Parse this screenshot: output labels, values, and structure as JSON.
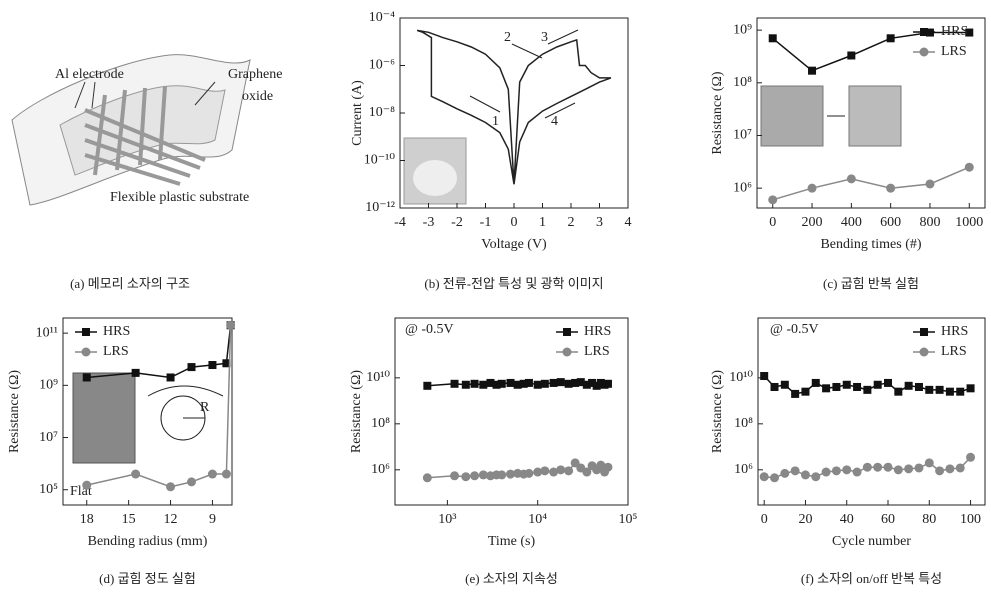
{
  "diagram": {
    "labels": [
      "Al electrode",
      "Graphene",
      "oxide",
      "Flexible plastic substrate"
    ],
    "caption": "(a) 메모리 소자의 구조"
  },
  "chart_data": [
    {
      "type": "line",
      "caption": "(b) 전류-전압 특성 및 광학 이미지",
      "xlabel": "Voltage (V)",
      "ylabel": "Current (A)",
      "yscale": "log",
      "xlim": [
        -4,
        4
      ],
      "xticks": [
        -4,
        -3,
        -2,
        -1,
        0,
        1,
        2,
        3,
        4
      ],
      "ylim": [
        1e-12,
        0.0001
      ],
      "yticks": [
        {
          "value": 1e-12,
          "label": "10⁻¹²"
        },
        {
          "value": 1e-10,
          "label": "10⁻¹⁰"
        },
        {
          "value": 1e-08,
          "label": "10⁻⁸"
        },
        {
          "value": 1e-06,
          "label": "10⁻⁶"
        },
        {
          "value": 0.0001,
          "label": "10⁻⁴"
        }
      ],
      "annotations": [
        "1",
        "2",
        "3",
        "4"
      ],
      "series": [
        {
          "color": "#222",
          "x": [
            0,
            -0.2,
            -0.5,
            -1,
            -1.5,
            -2,
            -2.5,
            -2.9,
            -2.9,
            -3.2,
            -3.4,
            -3,
            -2.5,
            -2,
            -1.5,
            -1,
            -0.5,
            -0.2,
            0,
            0.2,
            0.5,
            1,
            1.5,
            2,
            2.2,
            2.3,
            2.5,
            2.7,
            3,
            3.4,
            3,
            2.5,
            2,
            1.5,
            1,
            0.5,
            0.2,
            0
          ],
          "values": [
            1e-11,
            3e-10,
            1.5e-09,
            4e-09,
            8e-09,
            1.5e-08,
            3e-08,
            5e-08,
            1.5e-05,
            2.5e-05,
            3e-05,
            2.5e-05,
            1.5e-05,
            1e-05,
            6e-06,
            3e-06,
            8e-07,
            1e-07,
            1e-11,
            2e-07,
            1e-06,
            3e-06,
            6e-06,
            1e-05,
            1.2e-05,
            1e-06,
            1e-06,
            5e-07,
            3e-07,
            3e-07,
            2e-07,
            1e-07,
            5e-08,
            2.5e-08,
            1.2e-08,
            4e-09,
            6e-10,
            1e-11
          ]
        }
      ]
    },
    {
      "type": "line",
      "caption": "(c) 굽힘 반복 실험",
      "xlabel": "Bending times (#)",
      "ylabel": "Resistance (Ω)",
      "yscale": "log",
      "legend": "upper right",
      "xlim": [
        -80,
        1080
      ],
      "xticks": [
        0,
        200,
        400,
        600,
        800,
        1000
      ],
      "ylim": [
        420000,
        1700000000
      ],
      "yticks": [
        {
          "value": 1000000.0,
          "label": "10⁶"
        },
        {
          "value": 10000000.0,
          "label": "10⁷"
        },
        {
          "value": 100000000.0,
          "label": "10⁸"
        },
        {
          "value": 1000000000.0,
          "label": "10⁹"
        }
      ],
      "x": [
        0,
        200,
        400,
        600,
        800,
        1000
      ],
      "series": [
        {
          "name": "HRS",
          "color": "#111",
          "marker": "square",
          "values": [
            700000000.0,
            170000000.0,
            330000000.0,
            700000000.0,
            900000000.0,
            900000000.0
          ]
        },
        {
          "name": "LRS",
          "color": "#888",
          "marker": "circle",
          "values": [
            600000.0,
            1000000.0,
            1500000.0,
            1000000.0,
            1200000.0,
            2500000.0
          ]
        }
      ]
    },
    {
      "type": "line",
      "caption": "(d) 굽힘 정도 실험",
      "xlabel": "Bending radius (mm)",
      "ylabel": "Resistance (Ω)",
      "yscale": "log",
      "legend": "upper left",
      "xlim": [
        19.7,
        7.6
      ],
      "xticks": [
        18,
        15,
        12,
        9
      ],
      "ylim": [
        26000,
        380000000000
      ],
      "yticks": [
        {
          "value": 100000.0,
          "label": "10⁵"
        },
        {
          "value": 10000000.0,
          "label": "10⁷"
        },
        {
          "value": 1000000000.0,
          "label": "10⁹"
        },
        {
          "value": 100000000000.0,
          "label": "10¹¹"
        }
      ],
      "annotations": [
        "Flat",
        "R"
      ],
      "x": [
        18,
        14.5,
        12,
        10.5,
        9,
        8,
        7.7
      ],
      "series": [
        {
          "name": "HRS",
          "color": "#111",
          "marker": "square",
          "values": [
            2000000000.0,
            3000000000.0,
            2000000000.0,
            5000000000.0,
            6000000000.0,
            7000000000.0,
            200000000000.0
          ]
        },
        {
          "name": "LRS",
          "color": "#888",
          "marker": "circle",
          "values": [
            150000.0,
            400000.0,
            130000.0,
            200000.0,
            400000.0,
            400000.0,
            200000000000.0
          ]
        }
      ]
    },
    {
      "type": "line",
      "caption": "(e) 소자의 지속성",
      "xlabel": "Time (s)",
      "ylabel": "Resistance (Ω)",
      "xscale": "log",
      "yscale": "log",
      "legend": "upper right",
      "xlim": [
        263,
        100000
      ],
      "xticks": [
        {
          "value": 1000,
          "label": "10³"
        },
        {
          "value": 10000,
          "label": "10⁴"
        },
        {
          "value": 100000,
          "label": "10⁵"
        }
      ],
      "ylim": [
        29500,
        4000000000000
      ],
      "yticks": [
        {
          "value": 1000000.0,
          "label": "10⁶"
        },
        {
          "value": 100000000.0,
          "label": "10⁸"
        },
        {
          "value": 10000000000.0,
          "label": "10¹⁰"
        }
      ],
      "annotations": [
        "@ -0.5V"
      ],
      "x": [
        600,
        1200,
        1600,
        2000,
        2500,
        3000,
        3500,
        4000,
        5000,
        6000,
        7000,
        8000,
        10000,
        12000,
        15000,
        18000,
        22000,
        26000,
        30000,
        35000,
        40000,
        45000,
        50000,
        55000,
        60000
      ],
      "series": [
        {
          "name": "HRS",
          "color": "#111",
          "marker": "square",
          "values": [
            4500000000.0,
            5500000000.0,
            5000000000.0,
            5500000000.0,
            5000000000.0,
            6000000000.0,
            5000000000.0,
            5500000000.0,
            6000000000.0,
            5000000000.0,
            5500000000.0,
            6000000000.0,
            5000000000.0,
            5500000000.0,
            6000000000.0,
            6500000000.0,
            5500000000.0,
            6000000000.0,
            6500000000.0,
            5000000000.0,
            6000000000.0,
            4500000000.0,
            6000000000.0,
            5000000000.0,
            5500000000.0
          ]
        },
        {
          "name": "LRS",
          "color": "#888",
          "marker": "circle",
          "values": [
            450000.0,
            550000.0,
            500000.0,
            550000.0,
            600000.0,
            550000.0,
            600000.0,
            600000.0,
            650000.0,
            700000.0,
            650000.0,
            700000.0,
            800000.0,
            900000.0,
            800000.0,
            1000000.0,
            900000.0,
            2000000.0,
            1200000.0,
            800000.0,
            1500000.0,
            1000000.0,
            1600000.0,
            800000.0,
            1300000.0
          ]
        }
      ]
    },
    {
      "type": "line",
      "caption": "(f) 소자의 on/off 반복 특성",
      "xlabel": "Cycle number",
      "ylabel": "Resistance (Ω)",
      "yscale": "log",
      "legend": "upper right",
      "xlim": [
        -3,
        107
      ],
      "xticks": [
        0,
        20,
        40,
        60,
        80,
        100
      ],
      "ylim": [
        29500,
        4000000000000
      ],
      "yticks": [
        {
          "value": 1000000.0,
          "label": "10⁶"
        },
        {
          "value": 100000000.0,
          "label": "10⁸"
        },
        {
          "value": 10000000000.0,
          "label": "10¹⁰"
        }
      ],
      "annotations": [
        "@ -0.5V"
      ],
      "x": [
        0,
        5,
        10,
        15,
        20,
        25,
        30,
        35,
        40,
        45,
        50,
        55,
        60,
        65,
        70,
        75,
        80,
        85,
        90,
        95,
        100
      ],
      "series": [
        {
          "name": "HRS",
          "color": "#111",
          "marker": "square",
          "values": [
            12000000000.0,
            4000000000.0,
            5000000000.0,
            2000000000.0,
            2500000000.0,
            6000000000.0,
            3500000000.0,
            4000000000.0,
            5000000000.0,
            4000000000.0,
            3000000000.0,
            5000000000.0,
            6000000000.0,
            2500000000.0,
            4500000000.0,
            4000000000.0,
            3000000000.0,
            3000000000.0,
            2500000000.0,
            2500000000.0,
            3500000000.0
          ]
        },
        {
          "name": "LRS",
          "color": "#888",
          "marker": "circle",
          "values": [
            500000.0,
            450000.0,
            700000.0,
            900000.0,
            600000.0,
            500000.0,
            800000.0,
            900000.0,
            1000000.0,
            800000.0,
            1300000.0,
            1300000.0,
            1300000.0,
            1000000.0,
            1100000.0,
            1200000.0,
            2000000.0,
            900000.0,
            1100000.0,
            1200000.0,
            3500000.0
          ]
        }
      ]
    }
  ]
}
